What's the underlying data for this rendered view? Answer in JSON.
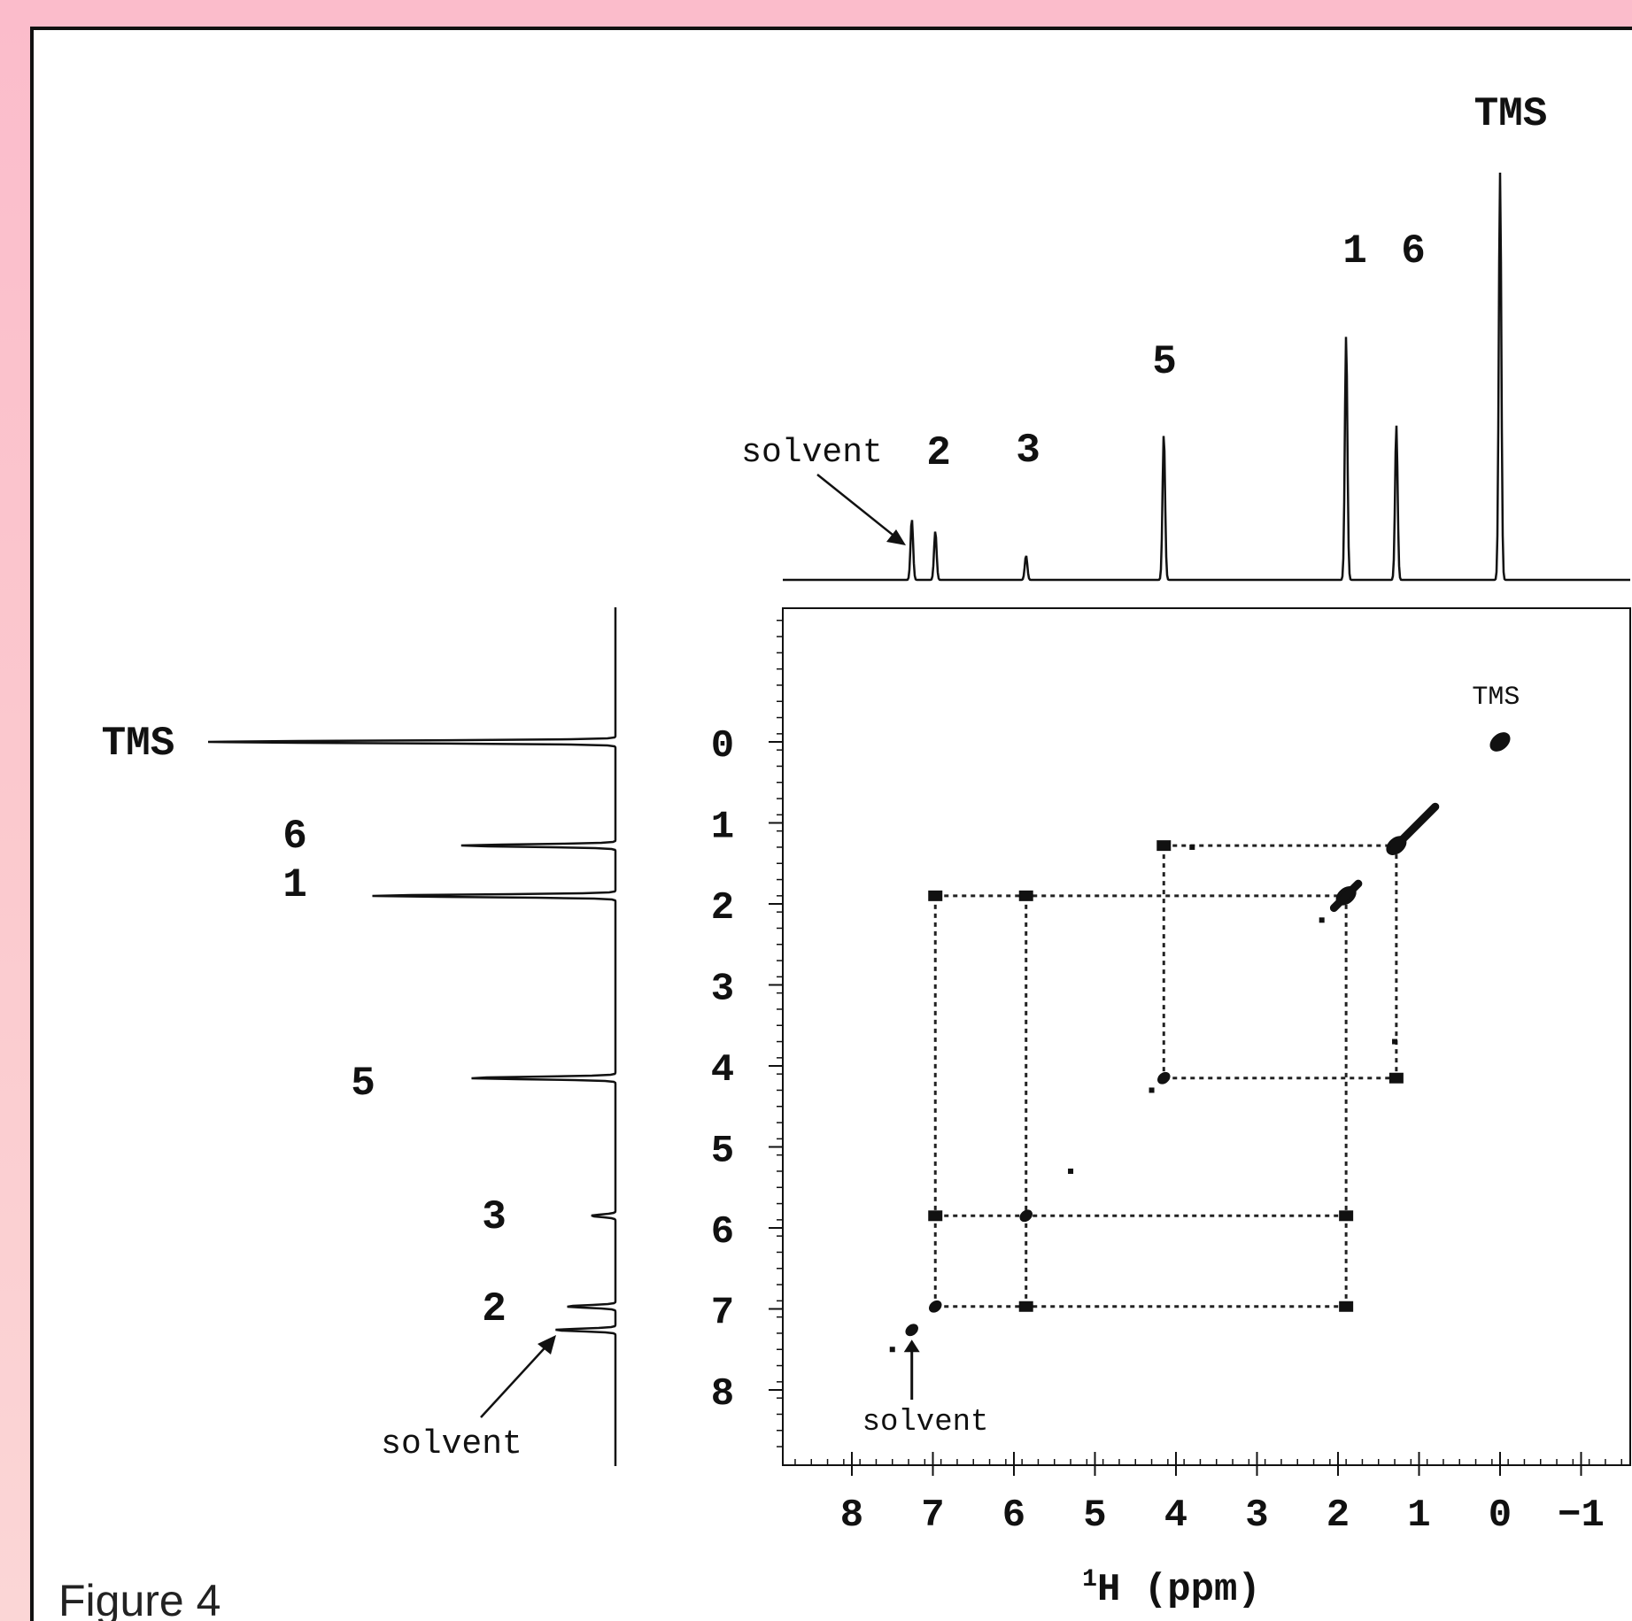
{
  "caption": "Figure 4",
  "chart_data": {
    "type": "scatter",
    "subtype": "2D COSY NMR spectrum",
    "xlabel": "(ppm)",
    "xlabel_nucleus": "1H",
    "x_ticks": [
      8,
      7,
      6,
      5,
      4,
      3,
      2,
      1,
      0,
      -1
    ],
    "y_ticks": [
      0,
      1,
      2,
      3,
      4,
      5,
      6,
      7,
      8
    ],
    "xlim": [
      9.0,
      -1.6
    ],
    "ylim": [
      -1.6,
      8.9
    ],
    "x_axis_reversed": true,
    "peaks_1d": [
      {
        "label": "TMS",
        "ppm": 0.0,
        "intensity": 1.0
      },
      {
        "label": "6",
        "ppm": 1.28,
        "intensity": 0.38
      },
      {
        "label": "1",
        "ppm": 1.9,
        "intensity": 0.6
      },
      {
        "label": "5",
        "ppm": 4.15,
        "intensity": 0.36
      },
      {
        "label": "3",
        "ppm": 5.85,
        "intensity": 0.06
      },
      {
        "label": "2",
        "ppm": 6.97,
        "intensity": 0.12
      },
      {
        "label": "solvent",
        "ppm": 7.26,
        "intensity": 0.15
      }
    ],
    "diagonal_peaks": [
      {
        "x": 0.0,
        "y": 0.0,
        "label": "TMS"
      },
      {
        "x": 1.28,
        "y": 1.28
      },
      {
        "x": 1.9,
        "y": 1.9
      },
      {
        "x": 4.15,
        "y": 4.15
      },
      {
        "x": 5.85,
        "y": 5.85
      },
      {
        "x": 6.97,
        "y": 6.97
      },
      {
        "x": 7.26,
        "y": 7.26,
        "label": "solvent"
      }
    ],
    "cross_peaks": [
      {
        "x": 4.15,
        "y": 1.28
      },
      {
        "x": 1.28,
        "y": 4.15
      },
      {
        "x": 6.97,
        "y": 1.9
      },
      {
        "x": 5.85,
        "y": 1.9
      },
      {
        "x": 1.9,
        "y": 6.97
      },
      {
        "x": 1.9,
        "y": 5.85
      },
      {
        "x": 6.97,
        "y": 5.85
      },
      {
        "x": 5.85,
        "y": 6.97
      }
    ],
    "annotations": [
      "TMS",
      "1",
      "6",
      "5",
      "solvent",
      "2",
      "3"
    ]
  }
}
